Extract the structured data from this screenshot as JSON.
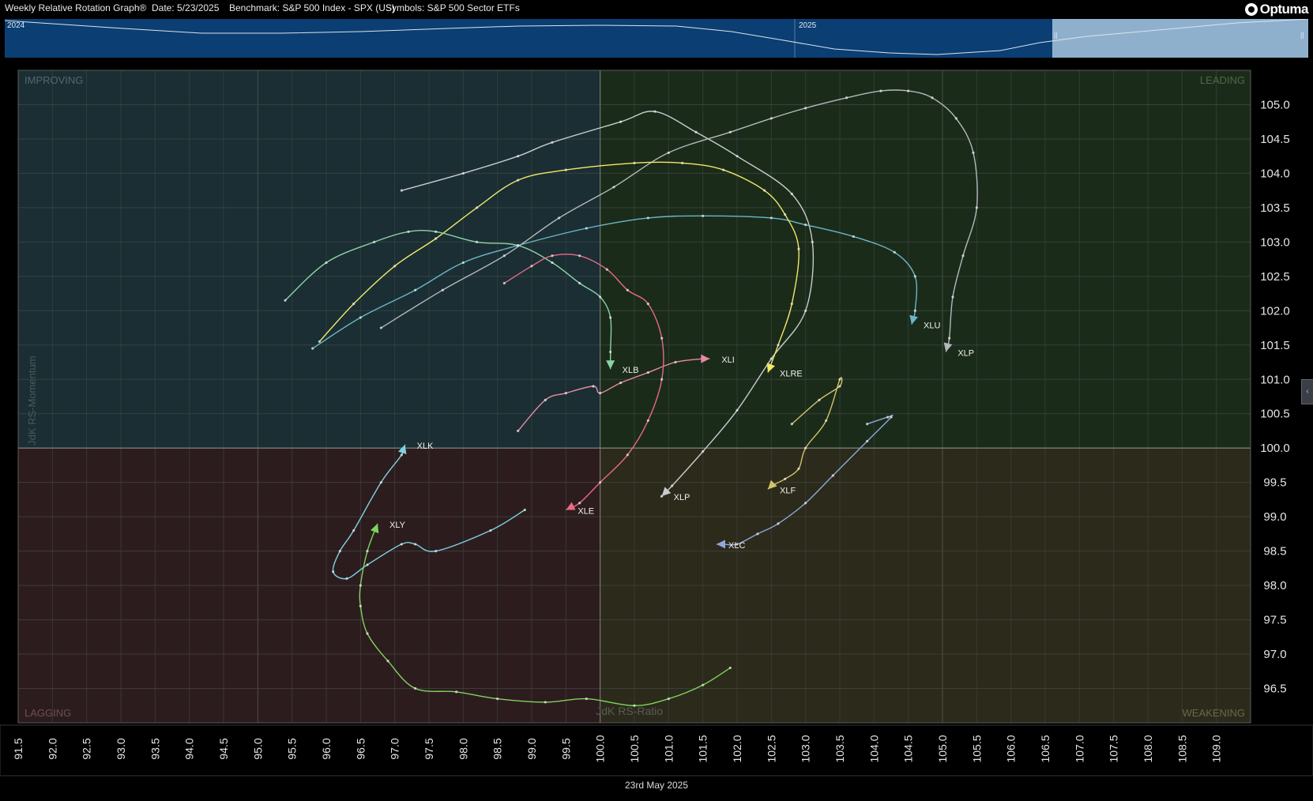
{
  "header": {
    "title": "Weekly Relative Rotation Graph®",
    "date": "Date: 5/23/2025",
    "benchmark": "Benchmark: S&P 500 Index - SPX (US)",
    "symbols": "Symbols: S&P 500 Sector ETFs",
    "logo": "Optuma"
  },
  "timeline": {
    "year_labels": [
      "2024",
      "2025"
    ],
    "window_marker": "||"
  },
  "footer": {
    "date": "23rd May 2025"
  },
  "side_tab": {
    "label": "‹"
  },
  "colors": {
    "improving": "#1a2e33",
    "leading": "#1b2b1a",
    "lagging": "#2d1c1e",
    "weakening": "#2c2a1a"
  },
  "chart_data": {
    "type": "scatter",
    "xlabel": "JdK RS-Ratio",
    "ylabel": "JdK RS-Momentum",
    "xlim": [
      91.5,
      109.5
    ],
    "ylim": [
      96,
      105.5
    ],
    "center": [
      100,
      100
    ],
    "x_ticks": [
      "91.5",
      "92.0",
      "92.5",
      "93.0",
      "93.5",
      "94.0",
      "94.5",
      "95.0",
      "95.5",
      "96.0",
      "96.5",
      "97.0",
      "97.5",
      "98.0",
      "98.5",
      "99.0",
      "99.5",
      "100.0",
      "100.5",
      "101.0",
      "101.5",
      "102.0",
      "102.5",
      "103.0",
      "103.5",
      "104.0",
      "104.5",
      "105.0",
      "105.5",
      "106.0",
      "106.5",
      "107.0",
      "107.5",
      "108.0",
      "108.5",
      "109.0"
    ],
    "y_ticks": [
      "105.0",
      "104.5",
      "104.0",
      "103.5",
      "103.0",
      "102.5",
      "102.0",
      "101.5",
      "101.0",
      "100.5",
      "100.0",
      "99.5",
      "99.0",
      "98.5",
      "98.0",
      "97.5",
      "97.0",
      "96.5"
    ],
    "quadrants": {
      "improving": "IMPROVING",
      "leading": "LEADING",
      "lagging": "LAGGING",
      "weakening": "WEAKENING"
    },
    "grid": true,
    "series": [
      {
        "name": "XLP",
        "color": "#c8ccd0",
        "points": [
          [
            97.1,
            103.75
          ],
          [
            98.0,
            104.0
          ],
          [
            98.8,
            104.25
          ],
          [
            99.3,
            104.45
          ],
          [
            100.3,
            104.75
          ],
          [
            100.8,
            104.9
          ],
          [
            101.4,
            104.6
          ],
          [
            102.0,
            104.25
          ],
          [
            102.8,
            103.7
          ],
          [
            103.1,
            103.0
          ],
          [
            103.0,
            102.0
          ],
          [
            102.5,
            101.3
          ],
          [
            102.0,
            100.55
          ],
          [
            101.5,
            99.95
          ],
          [
            101.05,
            99.45
          ],
          [
            100.9,
            99.3
          ],
          [
            100.9,
            99.3
          ]
        ],
        "dummy": 0
      },
      {
        "name": "XLU",
        "color": "#6bb6c8",
        "points": [
          [
            95.8,
            101.45
          ],
          [
            96.5,
            101.9
          ],
          [
            97.3,
            102.3
          ],
          [
            98.0,
            102.7
          ],
          [
            98.8,
            102.95
          ],
          [
            99.8,
            103.2
          ],
          [
            100.7,
            103.35
          ],
          [
            101.5,
            103.38
          ],
          [
            102.5,
            103.35
          ],
          [
            103.0,
            103.25
          ],
          [
            103.7,
            103.08
          ],
          [
            104.3,
            102.85
          ],
          [
            104.6,
            102.5
          ],
          [
            104.6,
            102.0
          ],
          [
            104.55,
            101.8
          ]
        ]
      },
      {
        "name": "XLP",
        "color": "#b4b8bc",
        "points": [
          [
            96.8,
            101.75
          ],
          [
            97.7,
            102.3
          ],
          [
            98.6,
            102.8
          ],
          [
            99.4,
            103.35
          ],
          [
            100.2,
            103.8
          ],
          [
            101.0,
            104.3
          ],
          [
            101.9,
            104.6
          ],
          [
            102.5,
            104.8
          ],
          [
            103.0,
            104.95
          ],
          [
            103.6,
            105.1
          ],
          [
            104.1,
            105.2
          ],
          [
            104.5,
            105.2
          ],
          [
            104.85,
            105.1
          ],
          [
            105.2,
            104.8
          ],
          [
            105.45,
            104.3
          ],
          [
            105.5,
            103.5
          ],
          [
            105.3,
            102.8
          ],
          [
            105.15,
            102.2
          ],
          [
            105.1,
            101.6
          ],
          [
            105.05,
            101.4
          ]
        ]
      },
      {
        "name": "XLRE",
        "color": "#f2e86a",
        "points": [
          [
            95.9,
            101.55
          ],
          [
            96.4,
            102.1
          ],
          [
            97.0,
            102.65
          ],
          [
            97.6,
            103.05
          ],
          [
            98.2,
            103.5
          ],
          [
            98.8,
            103.9
          ],
          [
            99.5,
            104.05
          ],
          [
            100.5,
            104.15
          ],
          [
            101.2,
            104.15
          ],
          [
            101.8,
            104.05
          ],
          [
            102.4,
            103.75
          ],
          [
            102.7,
            103.4
          ],
          [
            102.9,
            102.9
          ],
          [
            102.8,
            102.1
          ],
          [
            102.6,
            101.5
          ],
          [
            102.45,
            101.1
          ]
        ]
      },
      {
        "name": "XLB",
        "color": "#8bd3a7",
        "points": [
          [
            95.4,
            102.15
          ],
          [
            96.0,
            102.7
          ],
          [
            96.7,
            103.0
          ],
          [
            97.2,
            103.15
          ],
          [
            97.6,
            103.15
          ],
          [
            98.2,
            103.0
          ],
          [
            98.8,
            102.95
          ],
          [
            99.3,
            102.7
          ],
          [
            99.7,
            102.4
          ],
          [
            100.0,
            102.2
          ],
          [
            100.15,
            101.9
          ],
          [
            100.15,
            101.4
          ],
          [
            100.15,
            101.15
          ]
        ]
      },
      {
        "name": "XLI",
        "color": "#e88aa5",
        "points": [
          [
            98.8,
            100.25
          ],
          [
            99.2,
            100.7
          ],
          [
            99.5,
            100.8
          ],
          [
            99.9,
            100.9
          ],
          [
            100.0,
            100.8
          ],
          [
            100.3,
            100.95
          ],
          [
            100.7,
            101.1
          ],
          [
            101.1,
            101.25
          ],
          [
            101.5,
            101.3
          ],
          [
            101.6,
            101.3
          ]
        ]
      },
      {
        "name": "XLE",
        "color": "#e86a86",
        "points": [
          [
            98.6,
            102.4
          ],
          [
            99.0,
            102.65
          ],
          [
            99.3,
            102.8
          ],
          [
            99.7,
            102.8
          ],
          [
            100.1,
            102.6
          ],
          [
            100.4,
            102.3
          ],
          [
            100.7,
            102.1
          ],
          [
            100.9,
            101.6
          ],
          [
            100.9,
            101.0
          ],
          [
            100.7,
            100.4
          ],
          [
            100.4,
            99.9
          ],
          [
            100.0,
            99.5
          ],
          [
            99.7,
            99.2
          ],
          [
            99.5,
            99.1
          ]
        ]
      },
      {
        "name": "XLK",
        "color": "#7dd3e0",
        "points": [
          [
            98.9,
            99.1
          ],
          [
            98.4,
            98.8
          ],
          [
            97.6,
            98.5
          ],
          [
            97.3,
            98.6
          ],
          [
            97.1,
            98.6
          ],
          [
            96.6,
            98.3
          ],
          [
            96.3,
            98.1
          ],
          [
            96.1,
            98.2
          ],
          [
            96.2,
            98.5
          ],
          [
            96.4,
            98.8
          ],
          [
            96.8,
            99.5
          ],
          [
            97.1,
            99.9
          ],
          [
            97.15,
            100.05
          ]
        ]
      },
      {
        "name": "XLY",
        "color": "#7ed35e",
        "points": [
          [
            101.9,
            96.8
          ],
          [
            101.5,
            96.55
          ],
          [
            101.0,
            96.35
          ],
          [
            100.5,
            96.25
          ],
          [
            99.8,
            96.35
          ],
          [
            99.2,
            96.3
          ],
          [
            98.5,
            96.35
          ],
          [
            97.9,
            96.45
          ],
          [
            97.3,
            96.5
          ],
          [
            96.9,
            96.9
          ],
          [
            96.6,
            97.3
          ],
          [
            96.5,
            97.7
          ],
          [
            96.5,
            98.0
          ],
          [
            96.6,
            98.5
          ],
          [
            96.75,
            98.9
          ]
        ]
      },
      {
        "name": "XLF",
        "color": "#d4c26a",
        "points": [
          [
            102.8,
            100.35
          ],
          [
            103.2,
            100.7
          ],
          [
            103.5,
            100.9
          ],
          [
            103.5,
            101.0
          ],
          [
            103.3,
            100.4
          ],
          [
            103.0,
            100.0
          ],
          [
            102.9,
            99.7
          ],
          [
            102.7,
            99.55
          ],
          [
            102.5,
            99.45
          ],
          [
            102.45,
            99.4
          ]
        ]
      },
      {
        "name": "XLC",
        "color": "#8ea8e0",
        "points": [
          [
            103.9,
            100.35
          ],
          [
            104.2,
            100.45
          ],
          [
            104.25,
            100.45
          ],
          [
            103.9,
            100.1
          ],
          [
            103.4,
            99.6
          ],
          [
            103.0,
            99.2
          ],
          [
            102.6,
            98.9
          ],
          [
            102.3,
            98.75
          ],
          [
            102.0,
            98.6
          ],
          [
            101.8,
            98.6
          ],
          [
            101.7,
            98.6
          ]
        ]
      }
    ]
  }
}
